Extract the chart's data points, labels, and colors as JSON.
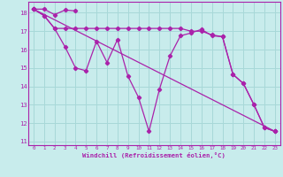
{
  "xlabel": "Windchill (Refroidissement éolien,°C)",
  "bg_color": "#c8ecec",
  "grid_color": "#a8d8d8",
  "line_color": "#aa22aa",
  "xlim": [
    -0.5,
    23.5
  ],
  "ylim": [
    10.8,
    18.6
  ],
  "yticks": [
    11,
    12,
    13,
    14,
    15,
    16,
    17,
    18
  ],
  "xticks": [
    0,
    1,
    2,
    3,
    4,
    5,
    6,
    7,
    8,
    9,
    10,
    11,
    12,
    13,
    14,
    15,
    16,
    17,
    18,
    19,
    20,
    21,
    22,
    23
  ],
  "lines": [
    {
      "x": [
        0,
        1,
        2,
        3,
        4
      ],
      "y": [
        18.2,
        18.2,
        17.9,
        18.15,
        18.1
      ]
    },
    {
      "x": [
        0,
        1,
        2,
        3,
        4,
        5,
        6,
        7,
        8,
        9,
        10,
        11,
        12,
        13,
        14,
        15,
        16,
        17,
        18,
        19,
        20,
        21,
        22,
        23
      ],
      "y": [
        18.2,
        17.85,
        17.15,
        16.15,
        15.0,
        14.85,
        16.45,
        15.3,
        16.55,
        14.55,
        13.4,
        11.55,
        13.85,
        15.65,
        16.75,
        16.9,
        17.1,
        16.75,
        16.7,
        14.65,
        14.15,
        13.0,
        11.75,
        11.55
      ]
    },
    {
      "x": [
        0,
        1,
        2,
        3,
        4,
        5,
        6,
        7,
        8,
        9,
        10,
        11,
        12,
        13,
        14,
        15,
        16,
        17,
        18,
        19,
        20,
        21,
        22,
        23
      ],
      "y": [
        18.2,
        17.85,
        17.15,
        17.15,
        17.15,
        17.15,
        17.15,
        17.15,
        17.15,
        17.15,
        17.15,
        17.15,
        17.15,
        17.15,
        17.15,
        17.0,
        17.0,
        16.8,
        16.7,
        14.65,
        14.15,
        13.0,
        11.75,
        11.55
      ]
    },
    {
      "x": [
        0,
        23
      ],
      "y": [
        18.2,
        11.55
      ]
    }
  ]
}
